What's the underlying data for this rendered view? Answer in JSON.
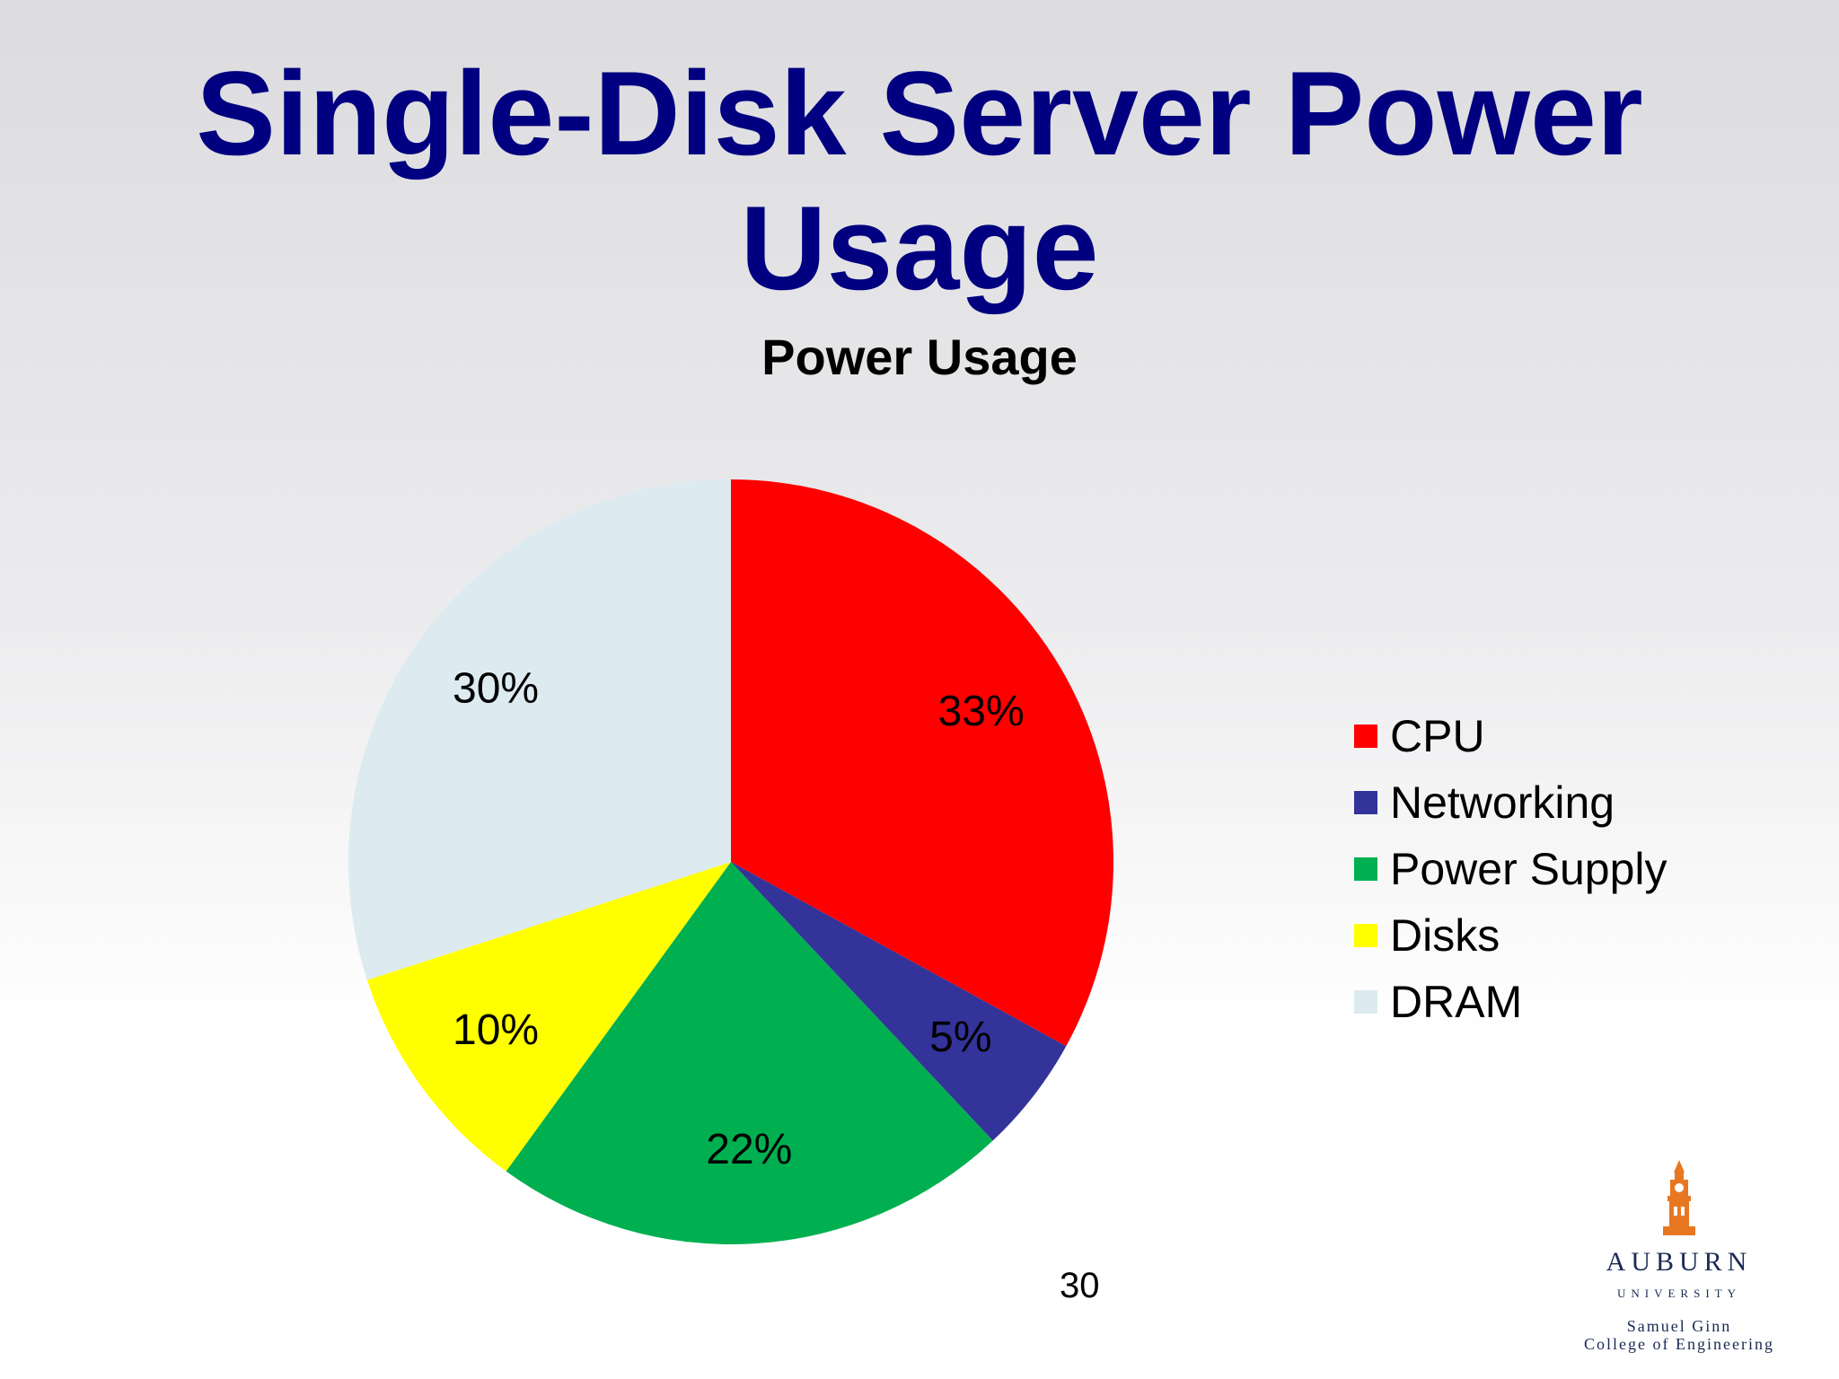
{
  "slide": {
    "title_line1": "Single-Disk Server Power",
    "title_line2": "Usage",
    "page_number": "30"
  },
  "logo": {
    "name": "AUBURN",
    "sub": "UNIVERSITY",
    "college_line1": "Samuel Ginn",
    "college_line2": "College of Engineering",
    "icon": "clock-tower-icon"
  },
  "chart_data": {
    "type": "pie",
    "title": "Power Usage",
    "categories": [
      "CPU",
      "Networking",
      "Power Supply",
      "Disks",
      "DRAM"
    ],
    "values": [
      33,
      5,
      22,
      10,
      30
    ],
    "data_labels": [
      "33%",
      "5%",
      "22%",
      "10%",
      "30%"
    ],
    "colors": [
      "#ff0000",
      "#333399",
      "#00b050",
      "#ffff00",
      "#ddebf0"
    ],
    "start_angle": "12 o'clock",
    "direction": "clockwise",
    "legend": {
      "placement": "right",
      "entries": [
        "CPU",
        "Networking",
        "Power Supply",
        "Disks",
        "DRAM"
      ]
    }
  }
}
